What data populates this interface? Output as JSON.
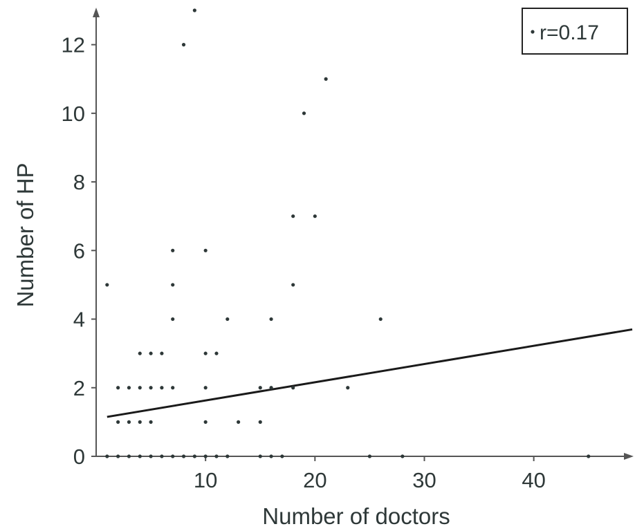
{
  "chart_data": {
    "type": "scatter",
    "xlabel": "Number of doctors",
    "ylabel": "Number of HP",
    "xlim": [
      0,
      49
    ],
    "ylim": [
      0,
      13
    ],
    "x_ticks": [
      "10",
      "20",
      "30",
      "40"
    ],
    "y_ticks": [
      "0",
      "2",
      "4",
      "6",
      "8",
      "10",
      "12"
    ],
    "legend": {
      "text": "r=0.17",
      "placement": "top-right"
    },
    "regression_line": {
      "x": [
        1,
        49
      ],
      "y": [
        1.15,
        3.7
      ]
    },
    "colors": {
      "points": "#2e3838",
      "axis": "#555555",
      "line": "#1a1a1a"
    },
    "series": [
      {
        "x": [
          1,
          2,
          3,
          4,
          5,
          6,
          7,
          8,
          9,
          10,
          11,
          12,
          15,
          16,
          17,
          25,
          28,
          45,
          2,
          3,
          4,
          5,
          10,
          13,
          15,
          2,
          3,
          4,
          5,
          6,
          7,
          10,
          15,
          16,
          18,
          23,
          4,
          5,
          6,
          10,
          11,
          7,
          12,
          16,
          26,
          1,
          7,
          18,
          7,
          10,
          18,
          20,
          19,
          21,
          8,
          9
        ],
        "y": [
          0,
          0,
          0,
          0,
          0,
          0,
          0,
          0,
          0,
          0,
          0,
          0,
          0,
          0,
          0,
          0,
          0,
          0,
          1,
          1,
          1,
          1,
          1,
          1,
          1,
          2,
          2,
          2,
          2,
          2,
          2,
          2,
          2,
          2,
          2,
          2,
          3,
          3,
          3,
          3,
          3,
          4,
          4,
          4,
          4,
          5,
          5,
          5,
          6,
          6,
          7,
          7,
          10,
          11,
          12,
          13
        ]
      }
    ]
  }
}
